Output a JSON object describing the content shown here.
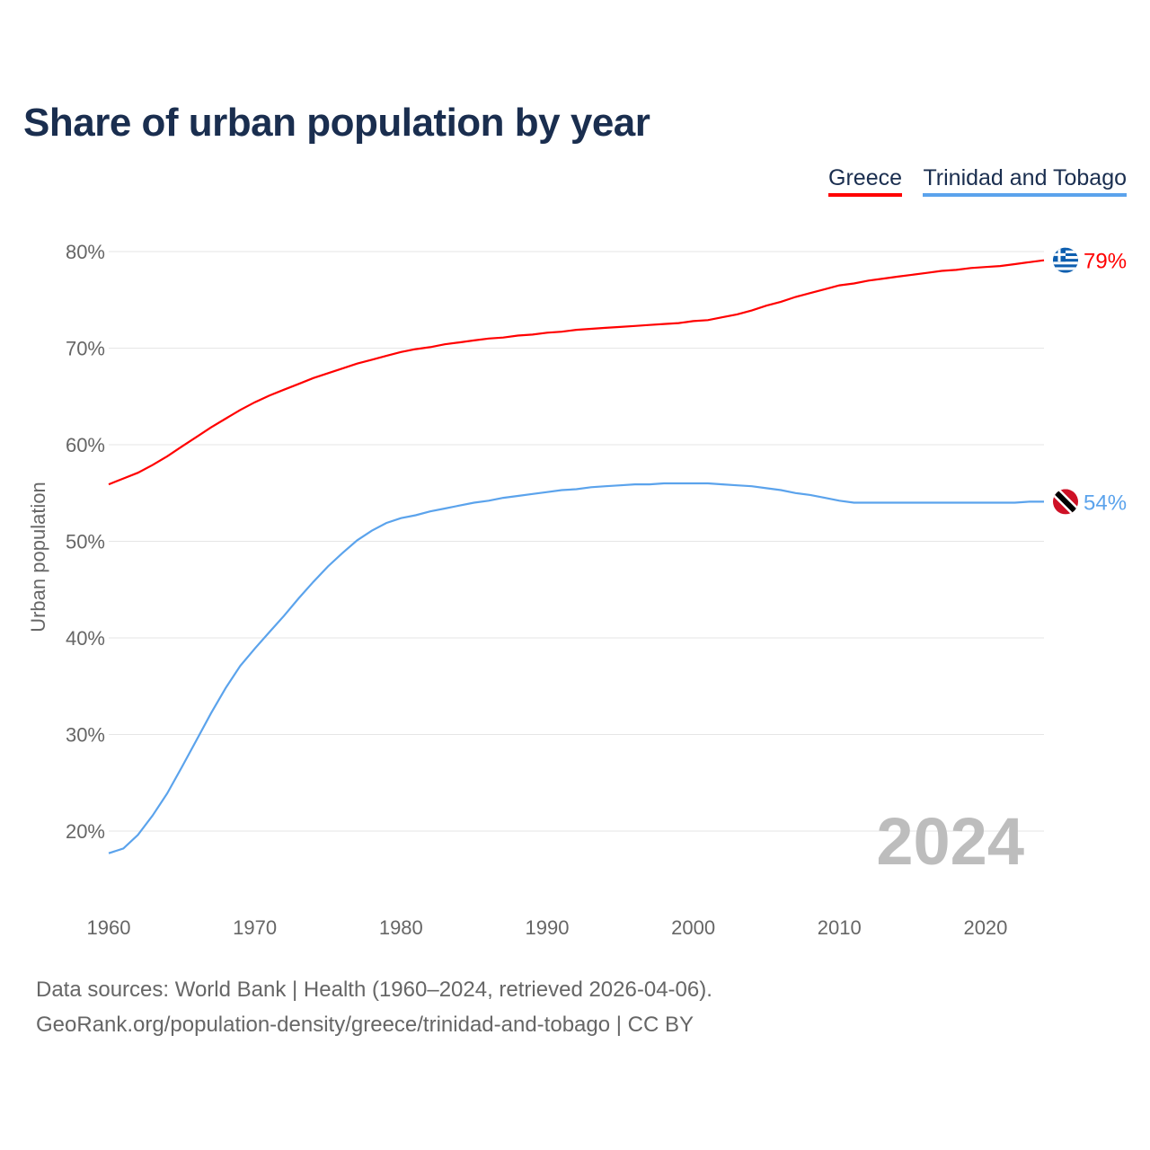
{
  "title": "Share of urban population by year",
  "footer": {
    "line1": "Data sources: World Bank | Health (1960–2024, retrieved 2026-04-06).",
    "line2": "GeoRank.org/population-density/greece/trinidad-and-tobago | CC BY"
  },
  "chart_data": {
    "type": "line",
    "title": "Share of urban population by year",
    "xlabel": "",
    "ylabel": "Urban population",
    "xlim": [
      1960,
      2024
    ],
    "ylim": [
      13,
      82
    ],
    "yticks": [
      20,
      30,
      40,
      50,
      60,
      70,
      80
    ],
    "ytick_labels": [
      "20%",
      "30%",
      "40%",
      "50%",
      "60%",
      "70%",
      "80%"
    ],
    "xticks": [
      1960,
      1970,
      1980,
      1990,
      2000,
      2010,
      2020
    ],
    "xtick_labels": [
      "1960",
      "1970",
      "1980",
      "1990",
      "2000",
      "2010",
      "2020"
    ],
    "grid": true,
    "legend_position": "top-right",
    "year_watermark": "2024",
    "x": [
      1960,
      1961,
      1962,
      1963,
      1964,
      1965,
      1966,
      1967,
      1968,
      1969,
      1970,
      1971,
      1972,
      1973,
      1974,
      1975,
      1976,
      1977,
      1978,
      1979,
      1980,
      1981,
      1982,
      1983,
      1984,
      1985,
      1986,
      1987,
      1988,
      1989,
      1990,
      1991,
      1992,
      1993,
      1994,
      1995,
      1996,
      1997,
      1998,
      1999,
      2000,
      2001,
      2002,
      2003,
      2004,
      2005,
      2006,
      2007,
      2008,
      2009,
      2010,
      2011,
      2012,
      2013,
      2014,
      2015,
      2016,
      2017,
      2018,
      2019,
      2020,
      2021,
      2022,
      2023,
      2024
    ],
    "series": [
      {
        "name": "Greece",
        "color": "#ff0000",
        "end_label": "79%",
        "flag": "greece-flag",
        "values": [
          55.9,
          56.5,
          57.1,
          57.9,
          58.8,
          59.8,
          60.8,
          61.8,
          62.7,
          63.6,
          64.4,
          65.1,
          65.7,
          66.3,
          66.9,
          67.4,
          67.9,
          68.4,
          68.8,
          69.2,
          69.6,
          69.9,
          70.1,
          70.4,
          70.6,
          70.8,
          71.0,
          71.1,
          71.3,
          71.4,
          71.6,
          71.7,
          71.9,
          72.0,
          72.1,
          72.2,
          72.3,
          72.4,
          72.5,
          72.6,
          72.8,
          72.9,
          73.2,
          73.5,
          73.9,
          74.4,
          74.8,
          75.3,
          75.7,
          76.1,
          76.5,
          76.7,
          77.0,
          77.2,
          77.4,
          77.6,
          77.8,
          78.0,
          78.1,
          78.3,
          78.4,
          78.5,
          78.7,
          78.9,
          79.1
        ]
      },
      {
        "name": "Trinidad and Tobago",
        "color": "#5ba3ec",
        "end_label": "54%",
        "flag": "trinidad-and-tobago-flag",
        "values": [
          17.7,
          18.2,
          19.6,
          21.6,
          23.9,
          26.6,
          29.4,
          32.2,
          34.8,
          37.1,
          38.9,
          40.6,
          42.3,
          44.1,
          45.8,
          47.4,
          48.8,
          50.1,
          51.1,
          51.9,
          52.4,
          52.7,
          53.1,
          53.4,
          53.7,
          54.0,
          54.2,
          54.5,
          54.7,
          54.9,
          55.1,
          55.3,
          55.4,
          55.6,
          55.7,
          55.8,
          55.9,
          55.9,
          56.0,
          56.0,
          56.0,
          56.0,
          55.9,
          55.8,
          55.7,
          55.5,
          55.3,
          55.0,
          54.8,
          54.5,
          54.2,
          54.0,
          54.0,
          54.0,
          54.0,
          54.0,
          54.0,
          54.0,
          54.0,
          54.0,
          54.0,
          54.0,
          54.0,
          54.1,
          54.1
        ]
      }
    ]
  }
}
